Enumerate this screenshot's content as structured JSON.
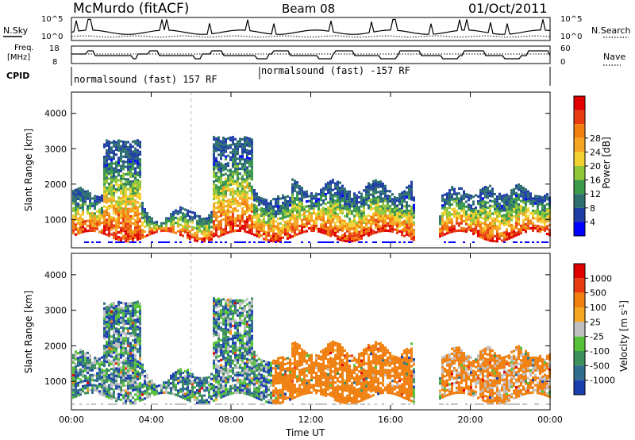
{
  "header": {
    "station": "McMurdo (fitACF)",
    "beam": "Beam 08",
    "date": "01/Oct/2011"
  },
  "mini_panels": {
    "nsky_label": "N.Sky",
    "nsearch_label": "N.Search",
    "nsky_ticks": [
      "10^5",
      "10^0"
    ],
    "nsearch_ticks": [
      "10^5",
      "10^0"
    ],
    "freq_label": [
      "Freq.",
      "[MHz]"
    ],
    "freq_ticks": [
      "18",
      "8"
    ],
    "nave_label": "Nave",
    "nave_ticks": [
      "60",
      "0"
    ],
    "cpid_label": "CPID",
    "cpid_entries": [
      "normalsound (fast) 157 RF",
      "normalsound (fast) -157 RF"
    ]
  },
  "colors": {
    "velocity_scale": [
      "#1c3fb0",
      "#2f6e8c",
      "#3d8f5b",
      "#56c23a",
      "#c0c0c0",
      "#f5a623",
      "#f07f0f",
      "#e83a12",
      "#e00000"
    ],
    "power_scale": [
      "#0000ff",
      "#1f3fa6",
      "#2e6f6f",
      "#3b9a4a",
      "#8fc63a",
      "#f2d230",
      "#f5a623",
      "#f07f0f",
      "#e83a12",
      "#e00000"
    ]
  },
  "chart_data": [
    {
      "type": "heatmap",
      "name_text": "Power panel",
      "xlabel": "",
      "ylabel": "Slant Range [km]",
      "x_ticks": [
        "00:00",
        "04:00",
        "08:00",
        "12:00",
        "16:00",
        "20:00",
        "00:00"
      ],
      "y_ticks": [
        1000,
        2000,
        3000,
        4000
      ],
      "ylim": [
        200,
        4600
      ],
      "colorbar_label": "Power [dB]",
      "colorbar_ticks": [
        4,
        8,
        12,
        16,
        20,
        24,
        28
      ]
    },
    {
      "type": "heatmap",
      "name_text": "Velocity panel",
      "xlabel": "Time UT",
      "ylabel": "Slant Range [km]",
      "x_ticks": [
        "00:00",
        "04:00",
        "08:00",
        "12:00",
        "16:00",
        "20:00",
        "00:00"
      ],
      "y_ticks": [
        1000,
        2000,
        3000,
        4000
      ],
      "ylim": [
        200,
        4600
      ],
      "colorbar_label": "Velocity [m s^-1]",
      "colorbar_ticks": [
        "1000",
        "500",
        "100",
        "25",
        "-25",
        "-100",
        "-500",
        "-1000"
      ]
    }
  ]
}
